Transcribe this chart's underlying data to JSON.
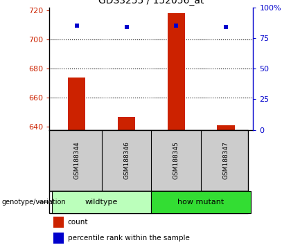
{
  "title": "GDS3255 / 152056_at",
  "samples": [
    "GSM188344",
    "GSM188346",
    "GSM188345",
    "GSM188347"
  ],
  "counts": [
    674,
    647,
    718,
    641
  ],
  "percentiles": [
    85,
    84,
    85,
    84
  ],
  "ylim_left": [
    638,
    722
  ],
  "ylim_right": [
    0,
    100
  ],
  "yticks_left": [
    640,
    660,
    680,
    700,
    720
  ],
  "yticks_right": [
    0,
    25,
    50,
    75,
    100
  ],
  "ytick_labels_right": [
    "0",
    "25",
    "50",
    "75",
    "100%"
  ],
  "bar_color": "#cc2200",
  "square_color": "#0000cc",
  "groups": [
    {
      "label": "wildtype",
      "indices": [
        0,
        1
      ],
      "color": "#bbffbb"
    },
    {
      "label": "how mutant",
      "indices": [
        2,
        3
      ],
      "color": "#33dd33"
    }
  ],
  "group_header": "genotype/variation",
  "legend_count_label": "count",
  "legend_pct_label": "percentile rank within the sample",
  "dotted_ticks": [
    660,
    680,
    700
  ],
  "bar_width": 0.35,
  "sample_bg": "#cccccc"
}
